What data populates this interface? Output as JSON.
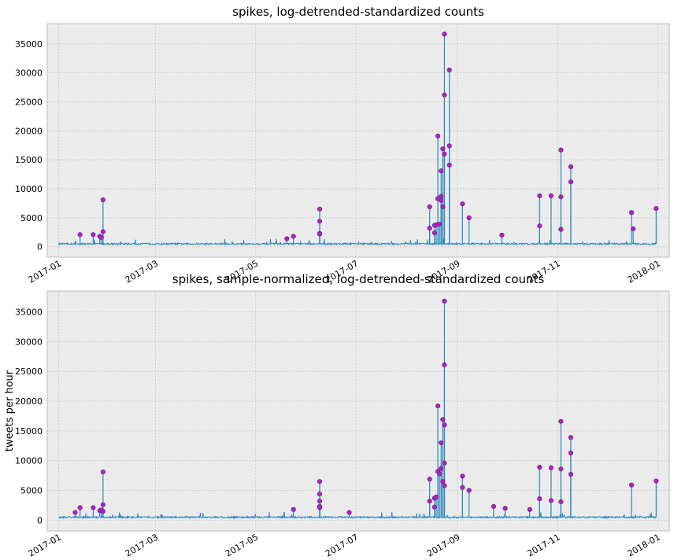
{
  "chart_data": [
    {
      "type": "line",
      "title": "spikes, log-detrended-standardized counts",
      "ylabel": "",
      "x_tick_labels": [
        "2017-01",
        "2017-03",
        "2017-05",
        "2017-07",
        "2017-09",
        "2017-11",
        "2018-01"
      ],
      "x_tick_dates": [
        "2017-01-01",
        "2017-03-01",
        "2017-05-01",
        "2017-07-01",
        "2017-09-01",
        "2017-11-01",
        "2018-01-01"
      ],
      "xlim": [
        "2016-12-25",
        "2018-01-08"
      ],
      "y_ticks": [
        0,
        5000,
        10000,
        15000,
        20000,
        25000,
        30000,
        35000
      ],
      "ylim": [
        -1800,
        38500
      ],
      "grid": true,
      "series": [
        {
          "baseline_level": 500,
          "spikes": [
            {
              "date": "2017-01-14",
              "value": 2100
            },
            {
              "date": "2017-01-22",
              "value": 2100
            },
            {
              "date": "2017-01-26",
              "value": 1800
            },
            {
              "date": "2017-01-27",
              "value": 1600
            },
            {
              "date": "2017-01-28",
              "value": 8100
            },
            {
              "date": "2017-01-28",
              "value": 2600
            },
            {
              "date": "2017-05-20",
              "value": 1400
            },
            {
              "date": "2017-05-24",
              "value": 1800
            },
            {
              "date": "2017-06-09",
              "value": 6500
            },
            {
              "date": "2017-06-09",
              "value": 4400
            },
            {
              "date": "2017-06-09",
              "value": 2300
            },
            {
              "date": "2017-06-09",
              "value": 2200
            },
            {
              "date": "2017-08-15",
              "value": 6900
            },
            {
              "date": "2017-08-15",
              "value": 3200
            },
            {
              "date": "2017-08-18",
              "value": 2400
            },
            {
              "date": "2017-08-18",
              "value": 3700
            },
            {
              "date": "2017-08-19",
              "value": 3800
            },
            {
              "date": "2017-08-20",
              "value": 8300
            },
            {
              "date": "2017-08-20",
              "value": 19100
            },
            {
              "date": "2017-08-21",
              "value": 3900
            },
            {
              "date": "2017-08-22",
              "value": 13100
            },
            {
              "date": "2017-08-22",
              "value": 8700
            },
            {
              "date": "2017-08-22",
              "value": 8000
            },
            {
              "date": "2017-08-23",
              "value": 16900
            },
            {
              "date": "2017-08-23",
              "value": 6900
            },
            {
              "date": "2017-08-24",
              "value": 26200
            },
            {
              "date": "2017-08-24",
              "value": 36700
            },
            {
              "date": "2017-08-24",
              "value": 16000
            },
            {
              "date": "2017-08-27",
              "value": 30500
            },
            {
              "date": "2017-08-27",
              "value": 17400
            },
            {
              "date": "2017-08-27",
              "value": 14100
            },
            {
              "date": "2017-09-04",
              "value": 7400
            },
            {
              "date": "2017-09-08",
              "value": 5000
            },
            {
              "date": "2017-09-28",
              "value": 2000
            },
            {
              "date": "2017-10-21",
              "value": 8800
            },
            {
              "date": "2017-10-21",
              "value": 3600
            },
            {
              "date": "2017-10-28",
              "value": 8800
            },
            {
              "date": "2017-11-03",
              "value": 16700
            },
            {
              "date": "2017-11-03",
              "value": 8600
            },
            {
              "date": "2017-11-03",
              "value": 3000
            },
            {
              "date": "2017-11-09",
              "value": 13800
            },
            {
              "date": "2017-11-09",
              "value": 11200
            },
            {
              "date": "2017-12-16",
              "value": 5900
            },
            {
              "date": "2017-12-17",
              "value": 3100
            },
            {
              "date": "2017-12-31",
              "value": 6600
            }
          ]
        }
      ]
    },
    {
      "type": "line",
      "title": "spikes, sample-normalized, log-detrended-standardized counts",
      "ylabel": "tweets per hour",
      "x_tick_labels": [
        "2017-01",
        "2017-03",
        "2017-05",
        "2017-07",
        "2017-09",
        "2017-11",
        "2018-01"
      ],
      "x_tick_dates": [
        "2017-01-01",
        "2017-03-01",
        "2017-05-01",
        "2017-07-01",
        "2017-09-01",
        "2017-11-01",
        "2018-01-01"
      ],
      "xlim": [
        "2016-12-25",
        "2018-01-08"
      ],
      "y_ticks": [
        0,
        5000,
        10000,
        15000,
        20000,
        25000,
        30000,
        35000
      ],
      "ylim": [
        -1800,
        38500
      ],
      "grid": true,
      "series": [
        {
          "baseline_level": 500,
          "spikes": [
            {
              "date": "2017-01-11",
              "value": 1300
            },
            {
              "date": "2017-01-14",
              "value": 2100
            },
            {
              "date": "2017-01-22",
              "value": 2100
            },
            {
              "date": "2017-01-26",
              "value": 1600
            },
            {
              "date": "2017-01-27",
              "value": 1700
            },
            {
              "date": "2017-01-28",
              "value": 8100
            },
            {
              "date": "2017-01-28",
              "value": 2600
            },
            {
              "date": "2017-01-28",
              "value": 1500
            },
            {
              "date": "2017-05-24",
              "value": 1800
            },
            {
              "date": "2017-06-09",
              "value": 6500
            },
            {
              "date": "2017-06-09",
              "value": 4400
            },
            {
              "date": "2017-06-09",
              "value": 3200
            },
            {
              "date": "2017-06-09",
              "value": 2300
            },
            {
              "date": "2017-06-09",
              "value": 2100
            },
            {
              "date": "2017-06-27",
              "value": 1300
            },
            {
              "date": "2017-08-15",
              "value": 6900
            },
            {
              "date": "2017-08-15",
              "value": 3200
            },
            {
              "date": "2017-08-18",
              "value": 2200
            },
            {
              "date": "2017-08-18",
              "value": 3700
            },
            {
              "date": "2017-08-19",
              "value": 3900
            },
            {
              "date": "2017-08-20",
              "value": 8200
            },
            {
              "date": "2017-08-20",
              "value": 19200
            },
            {
              "date": "2017-08-21",
              "value": 7800
            },
            {
              "date": "2017-08-22",
              "value": 13000
            },
            {
              "date": "2017-08-22",
              "value": 8700
            },
            {
              "date": "2017-08-23",
              "value": 16900
            },
            {
              "date": "2017-08-23",
              "value": 6500
            },
            {
              "date": "2017-08-24",
              "value": 26100
            },
            {
              "date": "2017-08-24",
              "value": 36800
            },
            {
              "date": "2017-08-24",
              "value": 16000
            },
            {
              "date": "2017-08-24",
              "value": 9600
            },
            {
              "date": "2017-08-24",
              "value": 5800
            },
            {
              "date": "2017-09-04",
              "value": 7400
            },
            {
              "date": "2017-09-04",
              "value": 5500
            },
            {
              "date": "2017-09-08",
              "value": 5000
            },
            {
              "date": "2017-09-23",
              "value": 2300
            },
            {
              "date": "2017-09-30",
              "value": 2000
            },
            {
              "date": "2017-10-15",
              "value": 1800
            },
            {
              "date": "2017-10-21",
              "value": 8900
            },
            {
              "date": "2017-10-21",
              "value": 3600
            },
            {
              "date": "2017-10-28",
              "value": 8800
            },
            {
              "date": "2017-10-28",
              "value": 3300
            },
            {
              "date": "2017-11-03",
              "value": 16600
            },
            {
              "date": "2017-11-03",
              "value": 8600
            },
            {
              "date": "2017-11-03",
              "value": 3100
            },
            {
              "date": "2017-11-09",
              "value": 13900
            },
            {
              "date": "2017-11-09",
              "value": 11300
            },
            {
              "date": "2017-11-09",
              "value": 7700
            },
            {
              "date": "2017-12-16",
              "value": 5900
            },
            {
              "date": "2017-12-31",
              "value": 6600
            }
          ]
        }
      ]
    }
  ]
}
